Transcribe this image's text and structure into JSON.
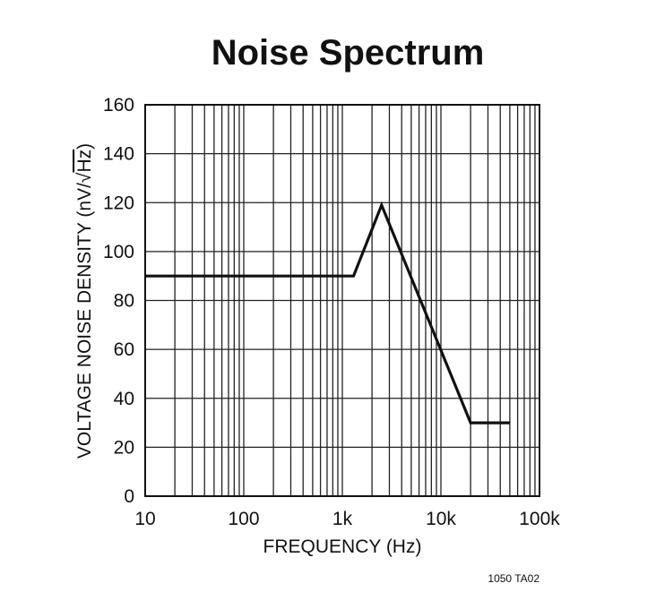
{
  "chart_data": {
    "type": "line",
    "title": "Noise Spectrum",
    "xlabel": "FREQUENCY (Hz)",
    "ylabel": "VOLTAGE NOISE DENSITY (nV/√Hz)",
    "ylabel_parts": {
      "main": "VOLTAGE NOISE DENSITY (nV/",
      "radical": "√",
      "radicand": "Hz",
      "close": ")"
    },
    "x_scale": "log",
    "xlim": [
      10,
      100000
    ],
    "ylim": [
      0,
      160
    ],
    "grid": true,
    "x_ticks": [
      {
        "value": 10,
        "label": "10"
      },
      {
        "value": 100,
        "label": "100"
      },
      {
        "value": 1000,
        "label": "1k"
      },
      {
        "value": 10000,
        "label": "10k"
      },
      {
        "value": 100000,
        "label": "100k"
      }
    ],
    "y_ticks": [
      0,
      20,
      40,
      60,
      80,
      100,
      120,
      140,
      160
    ],
    "series": [
      {
        "x": [
          10,
          1300,
          2500,
          20000,
          50000
        ],
        "y": [
          90,
          90,
          119,
          30,
          30
        ]
      }
    ],
    "annotation": "1050 TA02"
  },
  "colors": {
    "line": "#111111",
    "grid": "#222222"
  }
}
